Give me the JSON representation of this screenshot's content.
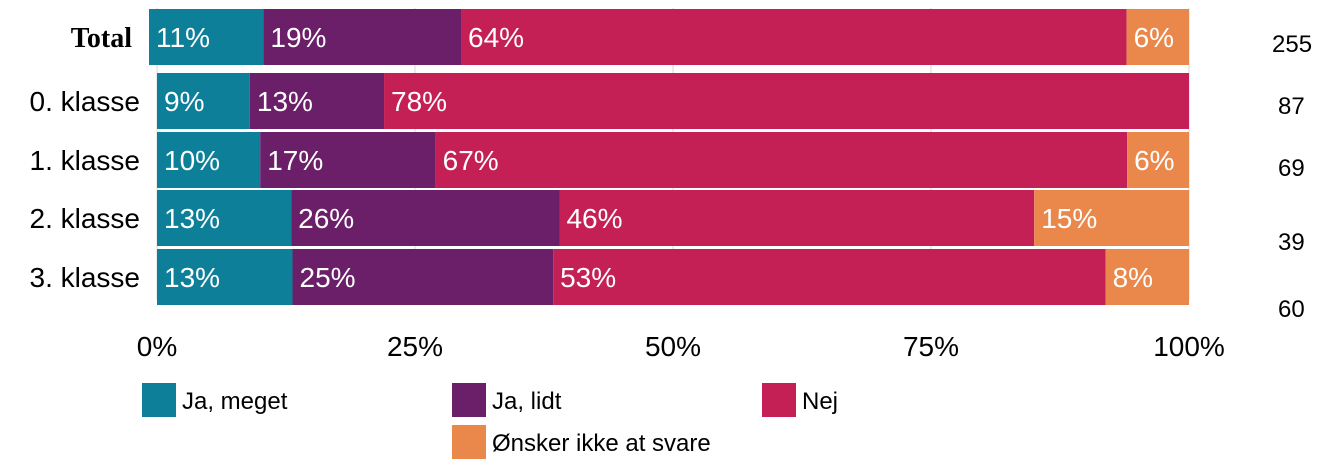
{
  "chart_data": {
    "type": "bar",
    "orientation": "horizontal",
    "stacked": true,
    "title": "",
    "xlabel": "",
    "ylabel": "",
    "xlim": [
      0,
      100
    ],
    "grid": true,
    "x_ticks": [
      "0%",
      "25%",
      "50%",
      "75%",
      "100%"
    ],
    "x_tick_values": [
      0,
      25,
      50,
      75,
      100
    ],
    "categories": [
      "Total",
      "0. klasse",
      "1. klasse",
      "2. klasse",
      "3. klasse"
    ],
    "n_values": [
      "255",
      "87",
      "69",
      "39",
      "60"
    ],
    "series": [
      {
        "name": "Ja, meget",
        "color": "#0e7f99",
        "values": [
          11,
          9,
          10,
          13,
          13
        ],
        "labels": [
          "11%",
          "9%",
          "10%",
          "13%",
          "13%"
        ]
      },
      {
        "name": "Ja, lidt",
        "color": "#6b1f68",
        "values": [
          19,
          13,
          17,
          26,
          25
        ],
        "labels": [
          "19%",
          "13%",
          "17%",
          "26%",
          "25%"
        ]
      },
      {
        "name": "Nej",
        "color": "#c42056",
        "values": [
          64,
          78,
          67,
          46,
          53
        ],
        "labels": [
          "64%",
          "78%",
          "67%",
          "46%",
          "53%"
        ]
      },
      {
        "name": "Ønsker ikke at svare",
        "color": "#ea874b",
        "values": [
          6,
          0,
          6,
          15,
          8
        ],
        "labels": [
          "6%",
          "",
          "6%",
          "15%",
          "8%"
        ]
      }
    ],
    "legend_position": "bottom"
  }
}
